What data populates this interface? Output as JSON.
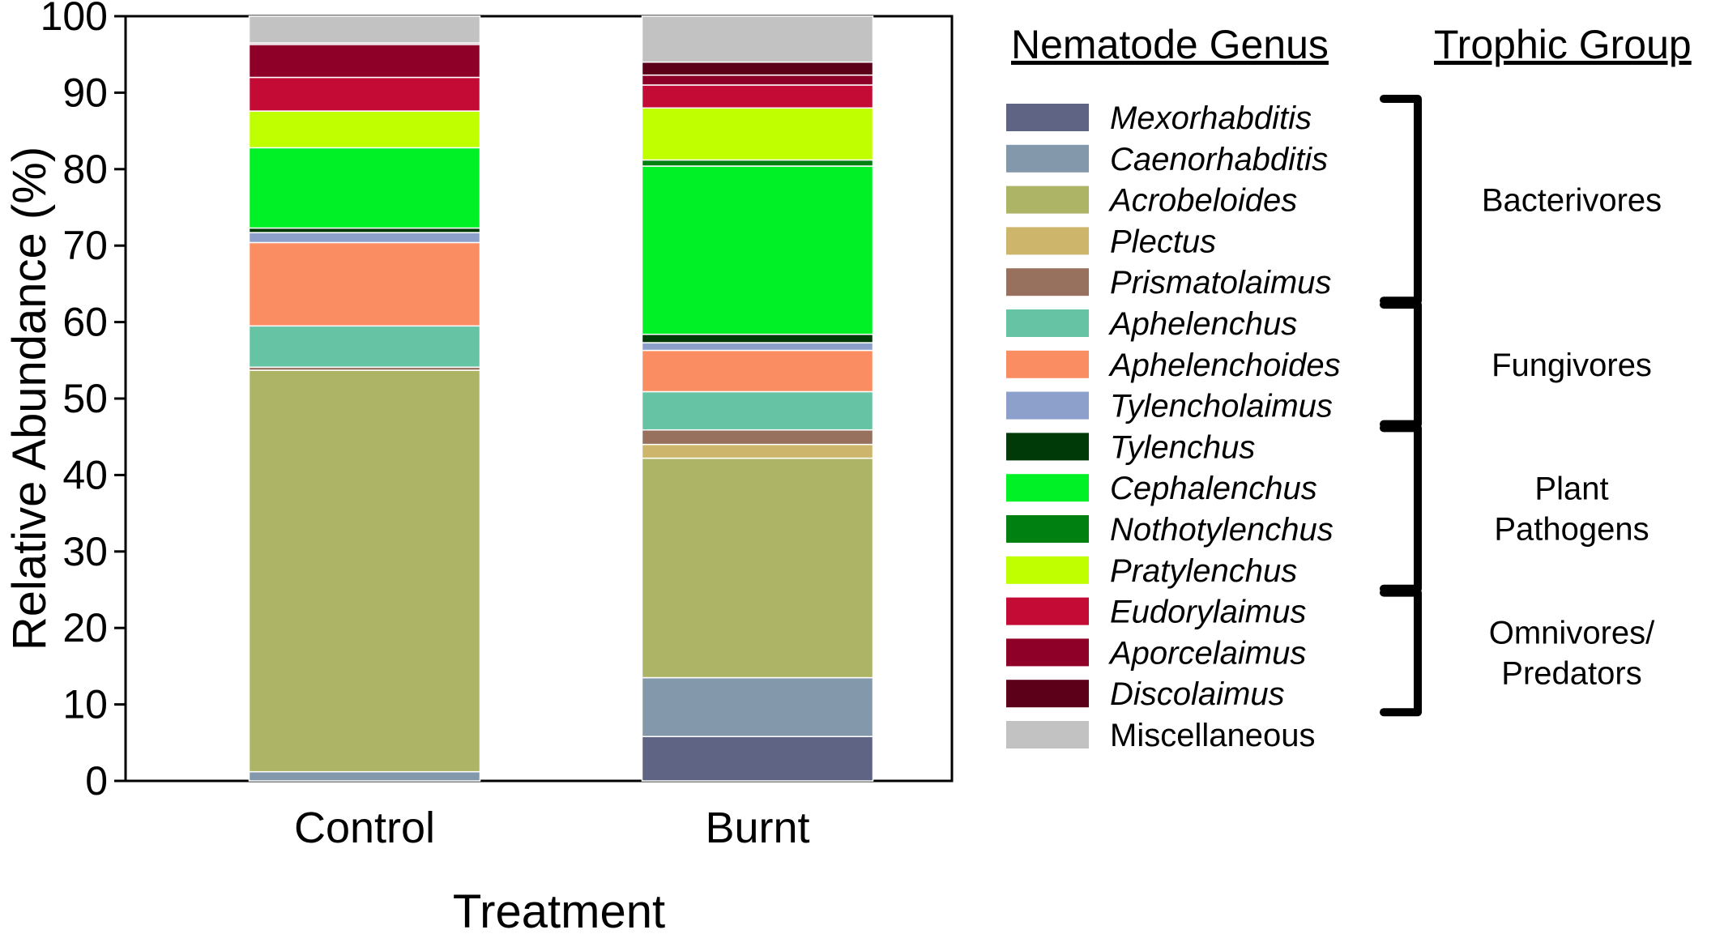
{
  "chart_data": {
    "type": "bar",
    "stacked": true,
    "xlabel": "Treatment",
    "ylabel": "Relative Abundance (%)",
    "ylim": [
      0,
      100
    ],
    "yticks": [
      0,
      10,
      20,
      30,
      40,
      50,
      60,
      70,
      80,
      90,
      100
    ],
    "categories": [
      "Control",
      "Burnt"
    ],
    "legend_title": "Nematode Genus",
    "group_title": "Trophic Group",
    "series": [
      {
        "name": "Mexorhabditis",
        "italic": true,
        "color": "#5f6384",
        "values": [
          0.0,
          5.8
        ]
      },
      {
        "name": "Caenorhabditis",
        "italic": true,
        "color": "#8498ab",
        "values": [
          1.2,
          7.7
        ]
      },
      {
        "name": "Acrobeloides",
        "italic": true,
        "color": "#adb465",
        "values": [
          52.5,
          28.7
        ]
      },
      {
        "name": "Plectus",
        "italic": true,
        "color": "#cdb66c",
        "values": [
          0.0,
          1.8
        ]
      },
      {
        "name": "Prismatolaimus",
        "italic": true,
        "color": "#98705e",
        "values": [
          0.4,
          1.9
        ]
      },
      {
        "name": "Aphelenchus",
        "italic": true,
        "color": "#66c4a5",
        "values": [
          5.4,
          5.0
        ]
      },
      {
        "name": "Aphelenchoides",
        "italic": true,
        "color": "#fb8d62",
        "values": [
          10.9,
          5.4
        ]
      },
      {
        "name": "Tylencholaimus",
        "italic": true,
        "color": "#8da0cb",
        "values": [
          1.3,
          1.0
        ]
      },
      {
        "name": "Tylenchus",
        "italic": true,
        "color": "#003a08",
        "values": [
          0.6,
          1.1
        ]
      },
      {
        "name": "Cephalenchus",
        "italic": true,
        "color": "#00f226",
        "values": [
          10.5,
          22.0
        ]
      },
      {
        "name": "Nothotylenchus",
        "italic": true,
        "color": "#008011",
        "values": [
          0.0,
          0.8
        ]
      },
      {
        "name": "Pratylenchus",
        "italic": true,
        "color": "#bfff00",
        "values": [
          4.8,
          6.8
        ]
      },
      {
        "name": "Eudorylaimus",
        "italic": true,
        "color": "#c30b35",
        "values": [
          4.4,
          3.0
        ]
      },
      {
        "name": "Aporcelaimus",
        "italic": true,
        "color": "#8e0028",
        "values": [
          4.3,
          1.3
        ]
      },
      {
        "name": "Discolaimus",
        "italic": true,
        "color": "#5b0018",
        "values": [
          0.2,
          1.7
        ]
      },
      {
        "name": "Miscellaneous",
        "italic": false,
        "color": "#c2c2c2",
        "values": [
          3.5,
          6.0
        ]
      }
    ],
    "groups": [
      {
        "label": [
          "Bacterivores"
        ],
        "from": 0,
        "to": 4
      },
      {
        "label": [
          "Fungivores"
        ],
        "from": 5,
        "to": 7
      },
      {
        "label": [
          "Plant",
          "Pathogens"
        ],
        "from": 8,
        "to": 11
      },
      {
        "label": [
          "Omnivores/",
          "Predators"
        ],
        "from": 12,
        "to": 14
      }
    ]
  }
}
